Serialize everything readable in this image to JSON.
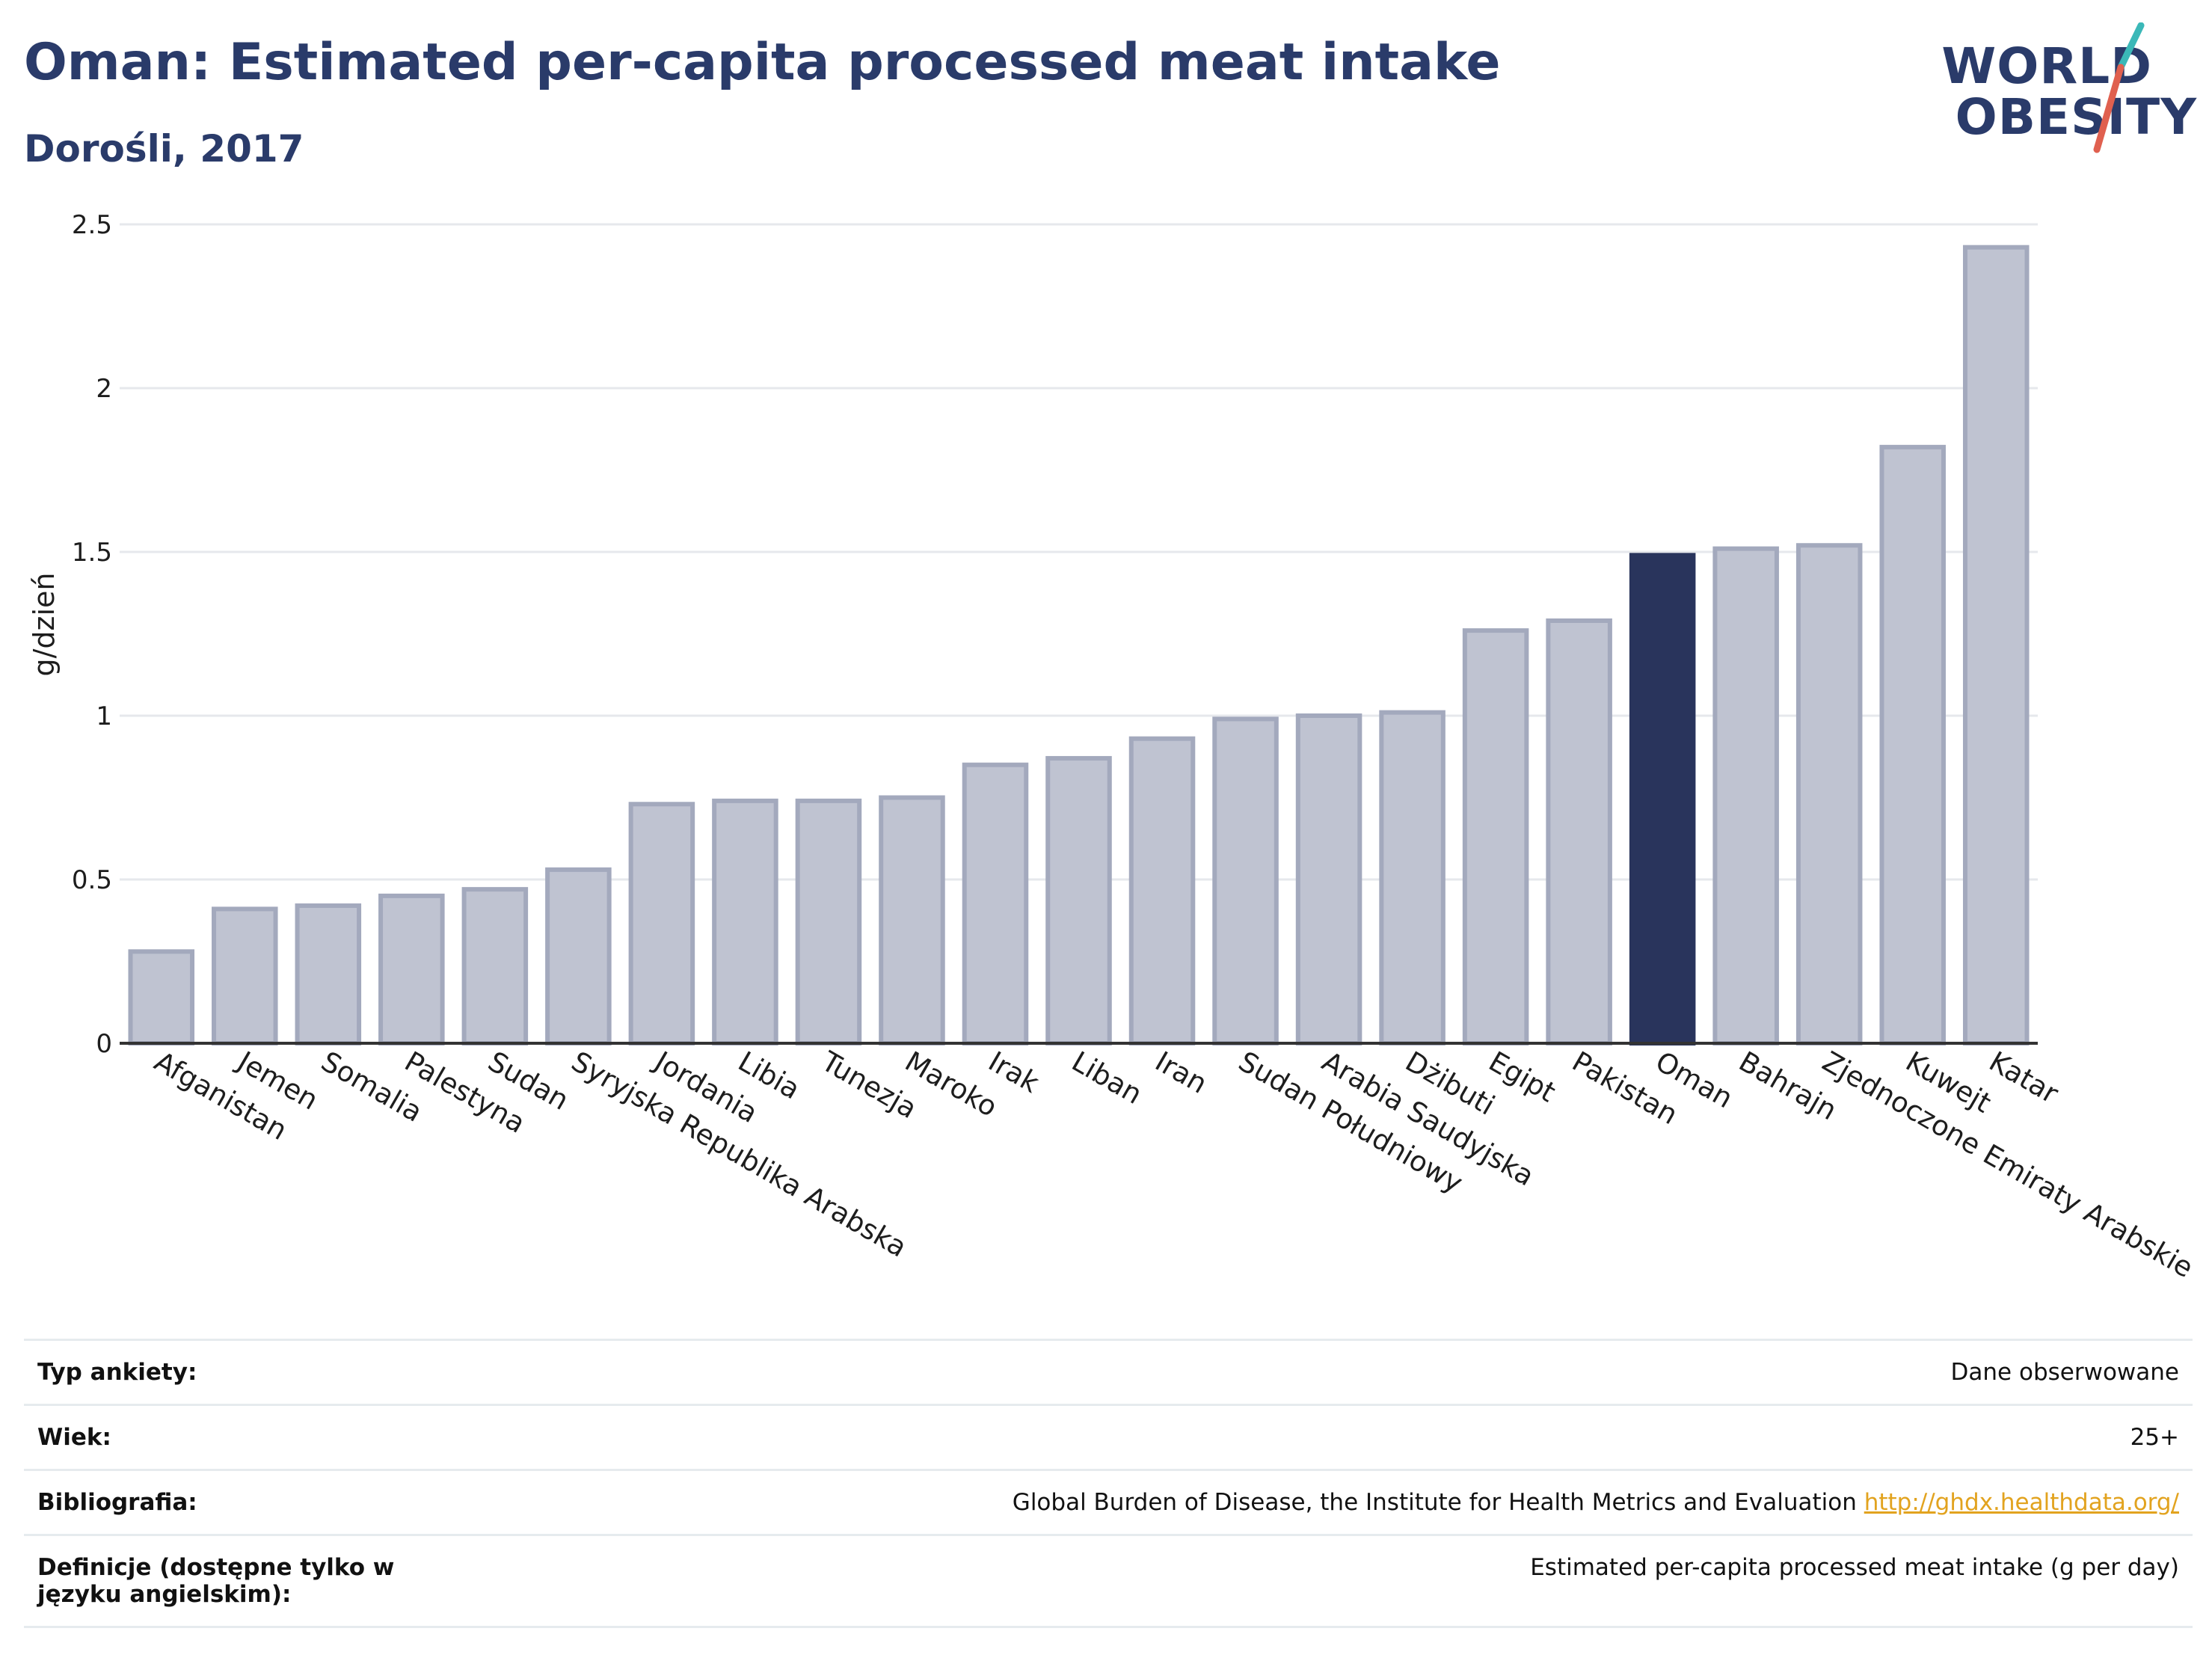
{
  "header": {
    "title": "Oman: Estimated per-capita processed meat intake",
    "subtitle": "Dorośli, 2017"
  },
  "logo": {
    "line1": "WORLD",
    "line2": "OBESITY",
    "colors": {
      "text": "#2a3b6a",
      "slash_top": "#3bb8b8",
      "slash_bottom": "#e0604f"
    }
  },
  "colors": {
    "bar_default": "#bfc3d1",
    "bar_default_border": "#a3a9bd",
    "bar_highlight": "#29345c",
    "grid": "#e6e8ec",
    "text": "#2a3b6a"
  },
  "chart_data": {
    "type": "bar",
    "title": "Oman: Estimated per-capita processed meat intake",
    "subtitle": "Dorośli, 2017",
    "ylabel": "g/dzień",
    "xlabel": "",
    "ylim": [
      0,
      2.5
    ],
    "yticks": [
      0,
      0.5,
      1,
      1.5,
      2,
      2.5
    ],
    "ytick_labels": [
      "0",
      "0.5",
      "1",
      "1.5",
      "2",
      "2.5"
    ],
    "grid": true,
    "highlight": "Oman",
    "categories": [
      "Afganistan",
      "Jemen",
      "Somalia",
      "Palestyna",
      "Sudan",
      "Syryjska Republika Arabska",
      "Jordania",
      "Libia",
      "Tunezja",
      "Maroko",
      "Irak",
      "Liban",
      "Iran",
      "Sudan Południowy",
      "Arabia Saudyjska",
      "Dżibuti",
      "Egipt",
      "Pakistan",
      "Oman",
      "Bahrajn",
      "Zjednoczone Emiraty Arabskie",
      "Kuwejt",
      "Katar"
    ],
    "values": [
      0.28,
      0.41,
      0.42,
      0.45,
      0.47,
      0.53,
      0.73,
      0.74,
      0.74,
      0.75,
      0.85,
      0.87,
      0.93,
      0.99,
      1.0,
      1.01,
      1.26,
      1.29,
      1.49,
      1.51,
      1.52,
      1.82,
      2.43
    ]
  },
  "info": [
    {
      "key": "Typ ankiety:",
      "value": "Dane obserwowane"
    },
    {
      "key": "Wiek:",
      "value": "25+"
    },
    {
      "key": "Bibliografia:",
      "value": "Global Burden of Disease, the Institute for Health Metrics and Evaluation",
      "link": "http://ghdx.healthdata.org/"
    },
    {
      "key": "Definicje (dostępne tylko w języku angielskim):",
      "value": "Estimated per-capita processed meat intake (g per day)"
    }
  ]
}
